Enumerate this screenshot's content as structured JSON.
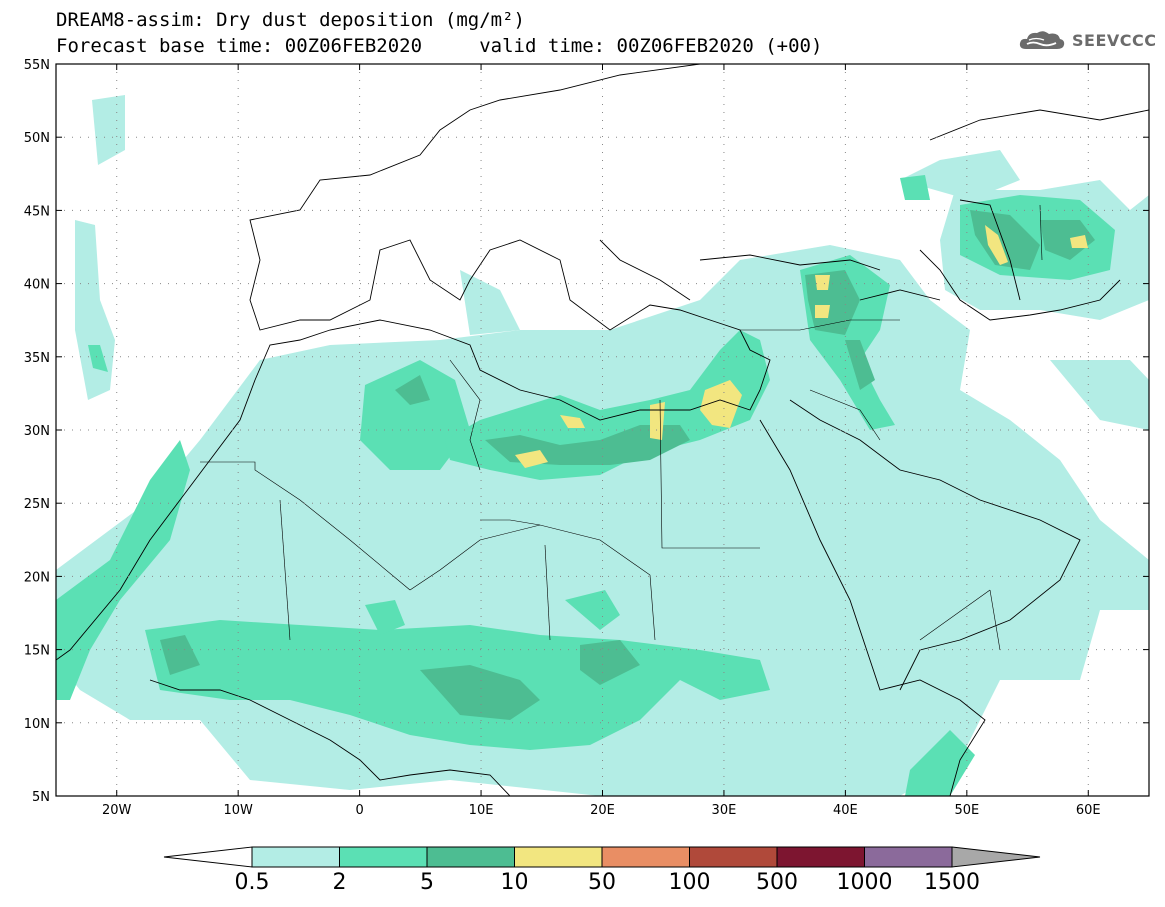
{
  "title": {
    "line1": "DREAM8-assim: Dry dust deposition (mg/m²)",
    "line2": "Forecast base time: 00Z06FEB2020     valid time: 00Z06FEB2020 (+00)"
  },
  "logo": {
    "text": "SEEVCCC",
    "icon": "cloud-icon"
  },
  "map": {
    "lon_range": [
      -25,
      65
    ],
    "lat_range": [
      5,
      55
    ],
    "lon_ticks": [
      {
        "value": -20,
        "label": "20W"
      },
      {
        "value": -10,
        "label": "10W"
      },
      {
        "value": 0,
        "label": "0"
      },
      {
        "value": 10,
        "label": "10E"
      },
      {
        "value": 20,
        "label": "20E"
      },
      {
        "value": 30,
        "label": "30E"
      },
      {
        "value": 40,
        "label": "40E"
      },
      {
        "value": 50,
        "label": "50E"
      },
      {
        "value": 60,
        "label": "60E"
      }
    ],
    "lat_ticks": [
      {
        "value": 55,
        "label": "55N"
      },
      {
        "value": 50,
        "label": "50N"
      },
      {
        "value": 45,
        "label": "45N"
      },
      {
        "value": 40,
        "label": "40N"
      },
      {
        "value": 35,
        "label": "35N"
      },
      {
        "value": 30,
        "label": "30N"
      },
      {
        "value": 25,
        "label": "25N"
      },
      {
        "value": 20,
        "label": "20N"
      },
      {
        "value": 15,
        "label": "15N"
      },
      {
        "value": 10,
        "label": "10N"
      },
      {
        "value": 5,
        "label": "5N"
      }
    ],
    "grid": "dotted"
  },
  "colorbar": {
    "levels": [
      "0.5",
      "2",
      "5",
      "10",
      "50",
      "100",
      "500",
      "1000",
      "1500"
    ],
    "colors": [
      "#b3ede5",
      "#5be0b4",
      "#4dbd92",
      "#f2e680",
      "#e98e64",
      "#b0493a",
      "#7d1530",
      "#8b6a9b"
    ],
    "under_color": "#ffffff",
    "over_color": "#a8a8a8"
  }
}
